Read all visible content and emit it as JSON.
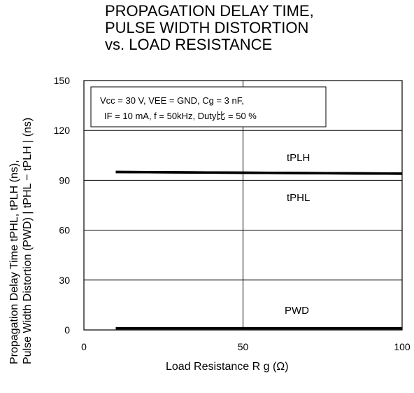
{
  "title_lines": [
    "PROPAGATION DELAY TIME,",
    "PULSE WIDTH DISTORTION",
    "vs. LOAD RESISTANCE"
  ],
  "conditions": {
    "line1": "Vcc = 30 V, VEE = GND, Cg = 3 nF,",
    "line2": "IF = 10 mA, f = 50kHz, Duty比 = 50 %"
  },
  "chart_data": {
    "type": "line",
    "x": [
      10,
      100
    ],
    "series": [
      {
        "name": "tPLH",
        "values": [
          95,
          94
        ]
      },
      {
        "name": "tPHL",
        "values": [
          95,
          94
        ]
      },
      {
        "name": "PWD",
        "values": [
          1,
          1
        ]
      }
    ],
    "xlim": [
      0,
      100
    ],
    "ylim": [
      0,
      150
    ],
    "xticks": [
      0,
      50,
      100
    ],
    "yticks": [
      0,
      30,
      60,
      90,
      120,
      150
    ],
    "grid": true,
    "xlabel": "Load Resistance  R g (Ω)",
    "ylabel_line1": "Propagation Delay Time  tPHL, tPLH (ns),",
    "ylabel_line2": "Pulse Width Distortion (PWD) | tPHL − tPLH | (ns)",
    "annotations": [
      "tPLH",
      "tPHL",
      "PWD"
    ]
  }
}
